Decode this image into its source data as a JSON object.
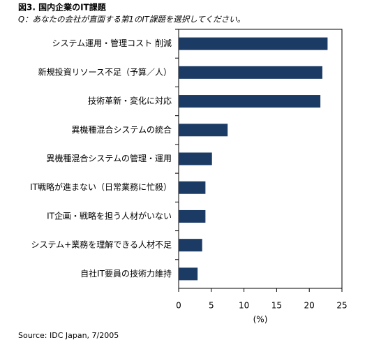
{
  "chart_data": {
    "type": "hbar",
    "title": "図3. 国内企業のIT課題",
    "subtitle": "Q：あなたの会社が直面する第1のIT課題を選択してください。",
    "xlabel": "(%)",
    "source": "Source: IDC Japan, 7/2005",
    "categories": [
      "システム運用・管理コスト 削減",
      "新規投資リソース不足（予算／人）",
      "技術革新・変化に対応",
      "異機種混合システムの統合",
      "異機種混合システムの管理・運用",
      "IT戦略が進まない（日常業務に忙殺）",
      "IT企画・戦略を担う人材がいない",
      "システム+業務を理解できる人材不足",
      "自社IT要員の技術力維持"
    ],
    "values": [
      22.8,
      22.0,
      21.7,
      7.5,
      5.1,
      4.1,
      4.1,
      3.6,
      2.9
    ],
    "color": "#1b3a64",
    "xlim": [
      0,
      25
    ],
    "xticks": [
      0,
      5,
      10,
      15,
      20,
      25
    ]
  }
}
